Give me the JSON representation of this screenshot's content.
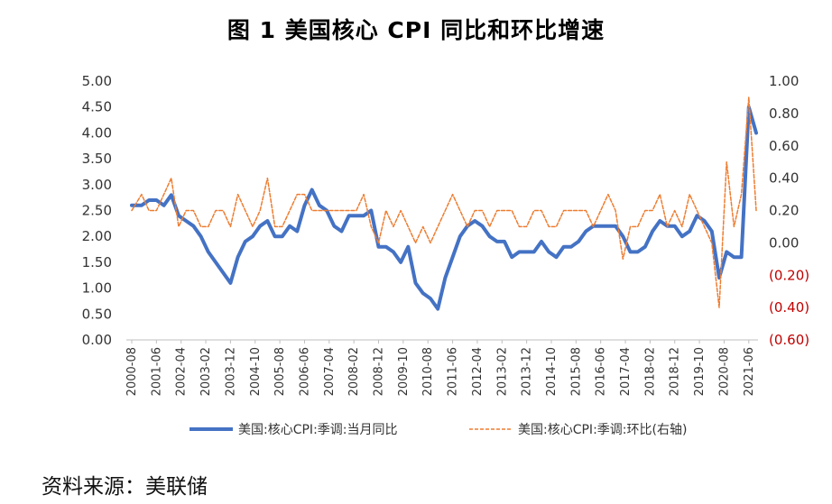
{
  "title": "图 1  美国核心 CPI 同比和环比增速",
  "source": "资料来源：美联储",
  "chart_data": {
    "type": "line",
    "title": "图 1  美国核心 CPI 同比和环比增速",
    "x_range": [
      "2000-08",
      "2021-09"
    ],
    "x_tick_labels": [
      "2000-08",
      "2001-06",
      "2002-04",
      "2003-02",
      "2003-12",
      "2004-10",
      "2005-08",
      "2006-06",
      "2007-04",
      "2008-02",
      "2008-12",
      "2009-10",
      "2010-08",
      "2011-06",
      "2012-04",
      "2013-02",
      "2013-12",
      "2014-10",
      "2015-08",
      "2016-06",
      "2017-04",
      "2018-02",
      "2018-12",
      "2019-10",
      "2020-08",
      "2021-06"
    ],
    "y_left": {
      "range": [
        0,
        5
      ],
      "tick_labels": [
        "0.00",
        "0.50",
        "1.00",
        "1.50",
        "2.00",
        "2.50",
        "3.00",
        "3.50",
        "4.00",
        "4.50",
        "5.00"
      ]
    },
    "y_right": {
      "range": [
        -0.6,
        1.0
      ],
      "tick_labels": [
        "(0.60)",
        "(0.40)",
        "(0.20)",
        "0.00",
        "0.20",
        "0.40",
        "0.60",
        "0.80",
        "1.00"
      ]
    },
    "series": [
      {
        "name": "美国:核心CPI:季调:当月同比",
        "axis": "left",
        "color": "#4472c4",
        "style": "solid",
        "points": [
          [
            "2000-08",
            2.6
          ],
          [
            "2000-12",
            2.6
          ],
          [
            "2001-03",
            2.7
          ],
          [
            "2001-06",
            2.7
          ],
          [
            "2001-09",
            2.6
          ],
          [
            "2001-12",
            2.8
          ],
          [
            "2002-03",
            2.4
          ],
          [
            "2002-06",
            2.3
          ],
          [
            "2002-09",
            2.2
          ],
          [
            "2002-12",
            2.0
          ],
          [
            "2003-03",
            1.7
          ],
          [
            "2003-06",
            1.5
          ],
          [
            "2003-09",
            1.3
          ],
          [
            "2003-12",
            1.1
          ],
          [
            "2004-03",
            1.6
          ],
          [
            "2004-06",
            1.9
          ],
          [
            "2004-09",
            2.0
          ],
          [
            "2004-12",
            2.2
          ],
          [
            "2005-03",
            2.3
          ],
          [
            "2005-06",
            2.0
          ],
          [
            "2005-09",
            2.0
          ],
          [
            "2005-12",
            2.2
          ],
          [
            "2006-03",
            2.1
          ],
          [
            "2006-06",
            2.6
          ],
          [
            "2006-09",
            2.9
          ],
          [
            "2006-12",
            2.6
          ],
          [
            "2007-03",
            2.5
          ],
          [
            "2007-06",
            2.2
          ],
          [
            "2007-09",
            2.1
          ],
          [
            "2007-12",
            2.4
          ],
          [
            "2008-03",
            2.4
          ],
          [
            "2008-06",
            2.4
          ],
          [
            "2008-09",
            2.5
          ],
          [
            "2008-12",
            1.8
          ],
          [
            "2009-03",
            1.8
          ],
          [
            "2009-06",
            1.7
          ],
          [
            "2009-09",
            1.5
          ],
          [
            "2009-12",
            1.8
          ],
          [
            "2010-03",
            1.1
          ],
          [
            "2010-06",
            0.9
          ],
          [
            "2010-09",
            0.8
          ],
          [
            "2010-12",
            0.6
          ],
          [
            "2011-03",
            1.2
          ],
          [
            "2011-06",
            1.6
          ],
          [
            "2011-09",
            2.0
          ],
          [
            "2011-12",
            2.2
          ],
          [
            "2012-03",
            2.3
          ],
          [
            "2012-06",
            2.2
          ],
          [
            "2012-09",
            2.0
          ],
          [
            "2012-12",
            1.9
          ],
          [
            "2013-03",
            1.9
          ],
          [
            "2013-06",
            1.6
          ],
          [
            "2013-09",
            1.7
          ],
          [
            "2013-12",
            1.7
          ],
          [
            "2014-03",
            1.7
          ],
          [
            "2014-06",
            1.9
          ],
          [
            "2014-09",
            1.7
          ],
          [
            "2014-12",
            1.6
          ],
          [
            "2015-03",
            1.8
          ],
          [
            "2015-06",
            1.8
          ],
          [
            "2015-09",
            1.9
          ],
          [
            "2015-12",
            2.1
          ],
          [
            "2016-03",
            2.2
          ],
          [
            "2016-06",
            2.2
          ],
          [
            "2016-09",
            2.2
          ],
          [
            "2016-12",
            2.2
          ],
          [
            "2017-03",
            2.0
          ],
          [
            "2017-06",
            1.7
          ],
          [
            "2017-09",
            1.7
          ],
          [
            "2017-12",
            1.8
          ],
          [
            "2018-03",
            2.1
          ],
          [
            "2018-06",
            2.3
          ],
          [
            "2018-09",
            2.2
          ],
          [
            "2018-12",
            2.2
          ],
          [
            "2019-03",
            2.0
          ],
          [
            "2019-06",
            2.1
          ],
          [
            "2019-09",
            2.4
          ],
          [
            "2019-12",
            2.3
          ],
          [
            "2020-03",
            2.1
          ],
          [
            "2020-06",
            1.2
          ],
          [
            "2020-09",
            1.7
          ],
          [
            "2020-12",
            1.6
          ],
          [
            "2021-03",
            1.6
          ],
          [
            "2021-06",
            4.5
          ],
          [
            "2021-09",
            4.0
          ]
        ]
      },
      {
        "name": "美国:核心CPI:季调:环比(右轴)",
        "axis": "right",
        "color": "#ed7d31",
        "style": "dashed",
        "points": [
          [
            "2000-08",
            0.2
          ],
          [
            "2000-12",
            0.3
          ],
          [
            "2001-03",
            0.2
          ],
          [
            "2001-06",
            0.2
          ],
          [
            "2001-09",
            0.3
          ],
          [
            "2001-12",
            0.4
          ],
          [
            "2002-03",
            0.1
          ],
          [
            "2002-06",
            0.2
          ],
          [
            "2002-09",
            0.2
          ],
          [
            "2002-12",
            0.1
          ],
          [
            "2003-03",
            0.1
          ],
          [
            "2003-06",
            0.2
          ],
          [
            "2003-09",
            0.2
          ],
          [
            "2003-12",
            0.1
          ],
          [
            "2004-03",
            0.3
          ],
          [
            "2004-06",
            0.2
          ],
          [
            "2004-09",
            0.1
          ],
          [
            "2004-12",
            0.2
          ],
          [
            "2005-03",
            0.4
          ],
          [
            "2005-06",
            0.1
          ],
          [
            "2005-09",
            0.1
          ],
          [
            "2005-12",
            0.2
          ],
          [
            "2006-03",
            0.3
          ],
          [
            "2006-06",
            0.3
          ],
          [
            "2006-09",
            0.2
          ],
          [
            "2006-12",
            0.2
          ],
          [
            "2007-03",
            0.2
          ],
          [
            "2007-06",
            0.2
          ],
          [
            "2007-09",
            0.2
          ],
          [
            "2007-12",
            0.2
          ],
          [
            "2008-03",
            0.2
          ],
          [
            "2008-06",
            0.3
          ],
          [
            "2008-09",
            0.1
          ],
          [
            "2008-12",
            0.0
          ],
          [
            "2009-03",
            0.2
          ],
          [
            "2009-06",
            0.1
          ],
          [
            "2009-09",
            0.2
          ],
          [
            "2009-12",
            0.1
          ],
          [
            "2010-03",
            0.0
          ],
          [
            "2010-06",
            0.1
          ],
          [
            "2010-09",
            0.0
          ],
          [
            "2010-12",
            0.1
          ],
          [
            "2011-03",
            0.2
          ],
          [
            "2011-06",
            0.3
          ],
          [
            "2011-09",
            0.2
          ],
          [
            "2011-12",
            0.1
          ],
          [
            "2012-03",
            0.2
          ],
          [
            "2012-06",
            0.2
          ],
          [
            "2012-09",
            0.1
          ],
          [
            "2012-12",
            0.2
          ],
          [
            "2013-03",
            0.2
          ],
          [
            "2013-06",
            0.2
          ],
          [
            "2013-09",
            0.1
          ],
          [
            "2013-12",
            0.1
          ],
          [
            "2014-03",
            0.2
          ],
          [
            "2014-06",
            0.2
          ],
          [
            "2014-09",
            0.1
          ],
          [
            "2014-12",
            0.1
          ],
          [
            "2015-03",
            0.2
          ],
          [
            "2015-06",
            0.2
          ],
          [
            "2015-09",
            0.2
          ],
          [
            "2015-12",
            0.2
          ],
          [
            "2016-03",
            0.1
          ],
          [
            "2016-06",
            0.2
          ],
          [
            "2016-09",
            0.3
          ],
          [
            "2016-12",
            0.2
          ],
          [
            "2017-03",
            -0.1
          ],
          [
            "2017-06",
            0.1
          ],
          [
            "2017-09",
            0.1
          ],
          [
            "2017-12",
            0.2
          ],
          [
            "2018-03",
            0.2
          ],
          [
            "2018-06",
            0.3
          ],
          [
            "2018-09",
            0.1
          ],
          [
            "2018-12",
            0.2
          ],
          [
            "2019-03",
            0.1
          ],
          [
            "2019-06",
            0.3
          ],
          [
            "2019-09",
            0.2
          ],
          [
            "2019-12",
            0.1
          ],
          [
            "2020-03",
            0.0
          ],
          [
            "2020-06",
            -0.4
          ],
          [
            "2020-09",
            0.5
          ],
          [
            "2020-12",
            0.1
          ],
          [
            "2021-03",
            0.3
          ],
          [
            "2021-06",
            0.9
          ],
          [
            "2021-09",
            0.2
          ]
        ]
      }
    ],
    "legend": {
      "placement": "bottom"
    },
    "grid": false
  }
}
